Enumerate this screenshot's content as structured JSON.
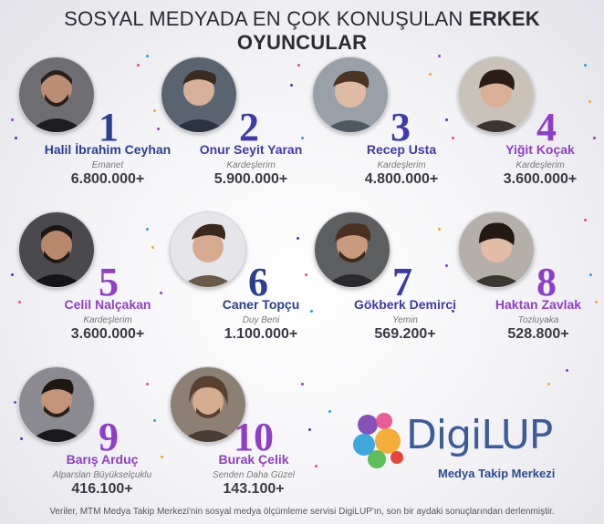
{
  "title": {
    "part1": "SOSYAL MEDYADA EN ÇOK KONUŞULAN ",
    "part2": "ERKEK OYUNCULAR"
  },
  "colors": {
    "blue": "#2c3f8f",
    "purple": "#8e3fc7",
    "indigo": "#3f3aa8"
  },
  "actors": [
    {
      "rank": "1",
      "name": "Halil İbrahim Ceyhan",
      "show": "Emanet",
      "count": "6.800.000+"
    },
    {
      "rank": "2",
      "name": "Onur Seyit Yaran",
      "show": "Kardeşlerim",
      "count": "5.900.000+"
    },
    {
      "rank": "3",
      "name": "Recep Usta",
      "show": "Kardeşlerim",
      "count": "4.800.000+"
    },
    {
      "rank": "4",
      "name": "Yiğit Koçak",
      "show": "Kardeşlerim",
      "count": "3.600.000+"
    },
    {
      "rank": "5",
      "name": "Celil Nalçakan",
      "show": "Kardeşlerim",
      "count": "3.600.000+"
    },
    {
      "rank": "6",
      "name": "Caner Topçu",
      "show": "Duy Beni",
      "count": "1.100.000+"
    },
    {
      "rank": "7",
      "name": "Gökberk Demirci",
      "show": "Yemin",
      "count": "569.200+"
    },
    {
      "rank": "8",
      "name": "Haktan Zavlak",
      "show": "Tozluyaka",
      "count": "528.800+"
    },
    {
      "rank": "9",
      "name": "Barış Arduç",
      "show": "Alparslan Büyükselçuklu",
      "count": "416.100+"
    },
    {
      "rank": "10",
      "name": "Burak Çelik",
      "show": "Senden Daha Güzel",
      "count": "143.100+"
    }
  ],
  "logo": {
    "brand": "DigiLUP",
    "subtitle": "Medya Takip Merkezi"
  },
  "footer": "Veriler, MTM Medya Takip Merkezi'nin sosyal medya ölçümleme servisi DigiLUP'ın, son bir aydaki sonuçlarından derlenmiştir."
}
